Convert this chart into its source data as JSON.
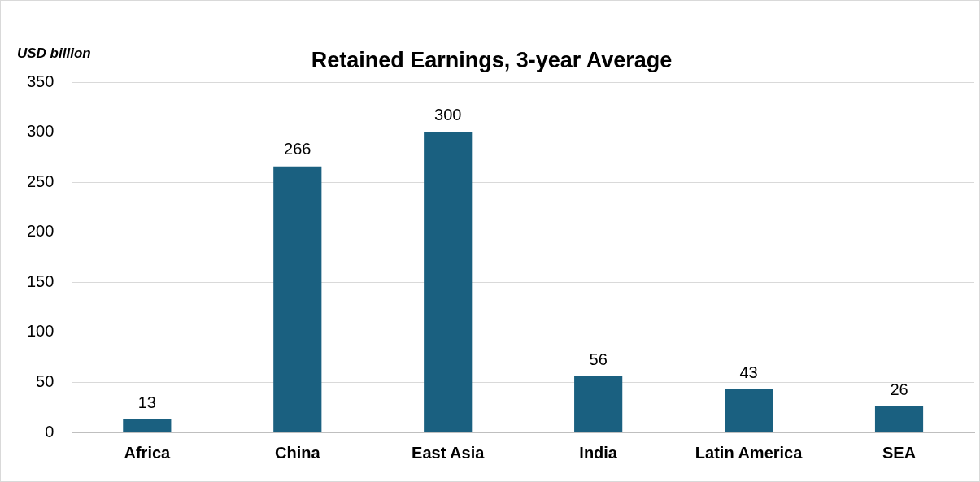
{
  "chart_data": {
    "type": "bar",
    "title": "Retained Earnings, 3-year Average",
    "ylabel": "USD billion",
    "categories": [
      "Africa",
      "China",
      "East Asia",
      "India",
      "Latin America",
      "SEA"
    ],
    "values": [
      13,
      266,
      300,
      56,
      43,
      26
    ],
    "color": "#1a6080",
    "ylim": [
      0,
      350
    ],
    "yticks": [
      0,
      50,
      100,
      150,
      200,
      250,
      300,
      350
    ],
    "grid": "y",
    "data_labels": true
  }
}
